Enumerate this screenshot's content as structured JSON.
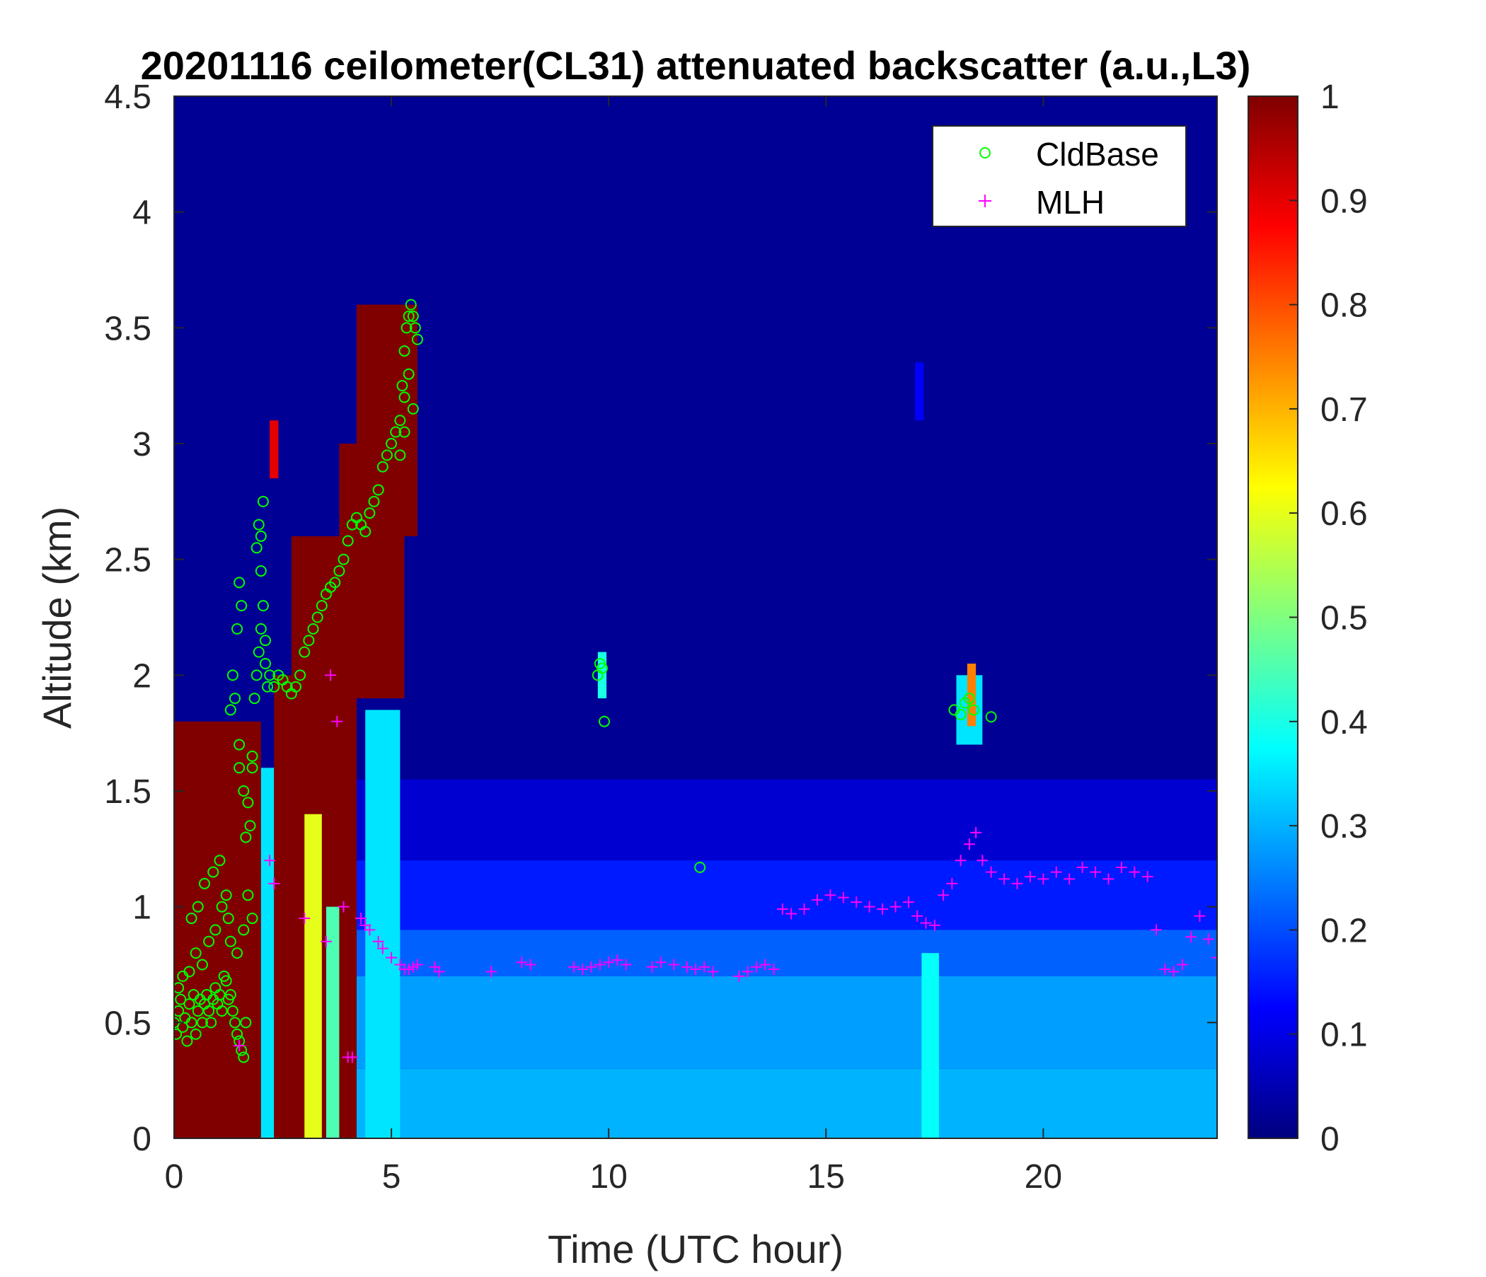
{
  "chart_data": {
    "type": "heatmap",
    "title": "20201116 ceilometer(CL31) attenuated backscatter (a.u.,L3)",
    "xlabel": "Time (UTC hour)",
    "ylabel": "Altitude (km)",
    "xlim": [
      0,
      24
    ],
    "ylim": [
      0,
      4.5
    ],
    "xticks": [
      0,
      5,
      10,
      15,
      20
    ],
    "xtick_labels": [
      "0",
      "5",
      "10",
      "15",
      "20"
    ],
    "yticks": [
      0,
      0.5,
      1,
      1.5,
      2,
      2.5,
      3,
      3.5,
      4,
      4.5
    ],
    "ytick_labels": [
      "0",
      "0.5",
      "1",
      "1.5",
      "2",
      "2.5",
      "3",
      "3.5",
      "4",
      "4.5"
    ],
    "colorbar": {
      "colormap": "jet",
      "range": [
        0,
        1
      ],
      "ticks": [
        0,
        0.1,
        0.2,
        0.3,
        0.4,
        0.5,
        0.6,
        0.7,
        0.8,
        0.9,
        1
      ],
      "tick_labels": [
        "0",
        "0.1",
        "0.2",
        "0.3",
        "0.4",
        "0.5",
        "0.6",
        "0.7",
        "0.8",
        "0.9",
        "1"
      ]
    },
    "legend": {
      "position": "top-right"
    },
    "heatmap_regions": [
      {
        "t0": 0.0,
        "t1": 24.0,
        "z0": 0.0,
        "z1": 4.5,
        "value": 0.02
      },
      {
        "t0": 4.2,
        "t1": 24.0,
        "z0": 1.2,
        "z1": 1.55,
        "value": 0.08
      },
      {
        "t0": 4.2,
        "t1": 24.0,
        "z0": 0.9,
        "z1": 1.2,
        "value": 0.15
      },
      {
        "t0": 4.2,
        "t1": 24.0,
        "z0": 0.7,
        "z1": 0.9,
        "value": 0.22
      },
      {
        "t0": 4.2,
        "t1": 24.0,
        "z0": 0.3,
        "z1": 0.7,
        "value": 0.28
      },
      {
        "t0": 4.2,
        "t1": 24.0,
        "z0": 0.0,
        "z1": 0.3,
        "value": 0.3
      },
      {
        "t0": 4.4,
        "t1": 5.2,
        "z0": 0.0,
        "z1": 1.85,
        "value": 0.35
      },
      {
        "t0": 17.2,
        "t1": 17.6,
        "z0": 0.0,
        "z1": 0.8,
        "value": 0.38
      },
      {
        "t0": 0.0,
        "t1": 2.0,
        "z0": 0.0,
        "z1": 1.8,
        "value": 1.0
      },
      {
        "t0": 2.0,
        "t1": 2.3,
        "z0": 0.0,
        "z1": 1.6,
        "value": 0.35
      },
      {
        "t0": 2.3,
        "t1": 2.7,
        "z0": 0.0,
        "z1": 2.0,
        "value": 1.0
      },
      {
        "t0": 2.7,
        "t1": 4.2,
        "z0": 0.0,
        "z1": 2.6,
        "value": 1.0
      },
      {
        "t0": 3.0,
        "t1": 3.4,
        "z0": 0.0,
        "z1": 1.4,
        "value": 0.6
      },
      {
        "t0": 3.5,
        "t1": 3.8,
        "z0": 0.0,
        "z1": 1.0,
        "value": 0.45
      },
      {
        "t0": 3.8,
        "t1": 5.3,
        "z0": 1.9,
        "z1": 3.0,
        "value": 1.0
      },
      {
        "t0": 4.2,
        "t1": 5.6,
        "z0": 2.6,
        "z1": 3.6,
        "value": 1.0
      },
      {
        "t0": 2.2,
        "t1": 2.4,
        "z0": 2.85,
        "z1": 3.1,
        "value": 0.9
      },
      {
        "t0": 9.75,
        "t1": 9.95,
        "z0": 1.9,
        "z1": 2.1,
        "value": 0.4
      },
      {
        "t0": 18.0,
        "t1": 18.6,
        "z0": 1.7,
        "z1": 2.0,
        "value": 0.35
      },
      {
        "t0": 18.25,
        "t1": 18.45,
        "z0": 1.78,
        "z1": 2.05,
        "value": 0.75
      },
      {
        "t0": 17.05,
        "t1": 17.25,
        "z0": 3.1,
        "z1": 3.35,
        "value": 0.12
      }
    ],
    "series": [
      {
        "name": "CldBase",
        "marker": "circle",
        "color": "#00ff00",
        "x": [
          0.0,
          0.05,
          0.1,
          0.15,
          0.2,
          0.25,
          0.3,
          0.35,
          0.4,
          0.45,
          0.5,
          0.55,
          0.6,
          0.65,
          0.7,
          0.75,
          0.8,
          0.85,
          0.9,
          0.95,
          1.0,
          1.05,
          1.1,
          1.15,
          1.2,
          1.25,
          1.3,
          1.35,
          1.4,
          1.45,
          1.5,
          1.55,
          1.6,
          1.65,
          0.1,
          0.2,
          0.35,
          0.5,
          0.65,
          0.8,
          0.95,
          1.1,
          1.25,
          0.4,
          0.55,
          0.7,
          0.9,
          1.05,
          1.2,
          1.3,
          1.45,
          1.6,
          1.7,
          1.8,
          1.5,
          1.5,
          1.6,
          1.7,
          1.8,
          1.8,
          1.85,
          1.9,
          1.95,
          2.0,
          2.05,
          2.1,
          2.1,
          2.15,
          1.9,
          1.95,
          2.0,
          2.05,
          2.0,
          1.55,
          1.45,
          1.35,
          1.4,
          1.3,
          1.5,
          1.65,
          1.75,
          2.2,
          2.3,
          2.4,
          2.5,
          2.6,
          2.7,
          2.8,
          2.9,
          3.0,
          3.1,
          3.2,
          3.3,
          3.4,
          3.5,
          3.6,
          3.7,
          3.8,
          3.9,
          4.0,
          4.1,
          4.2,
          4.3,
          4.4,
          4.5,
          4.6,
          4.7,
          4.8,
          4.9,
          5.0,
          5.1,
          5.2,
          5.25,
          5.3,
          5.35,
          5.4,
          5.45,
          5.5,
          5.55,
          5.6,
          5.3,
          5.4,
          5.5,
          5.2,
          5.3,
          9.75,
          9.8,
          9.85,
          9.9,
          12.1,
          17.95,
          18.1,
          18.2,
          18.3,
          18.4,
          18.8
        ],
        "y": [
          0.5,
          0.45,
          0.55,
          0.6,
          0.48,
          0.52,
          0.42,
          0.58,
          0.5,
          0.62,
          0.45,
          0.55,
          0.6,
          0.5,
          0.58,
          0.62,
          0.55,
          0.5,
          0.6,
          0.65,
          0.58,
          0.62,
          0.55,
          0.7,
          0.68,
          0.6,
          0.62,
          0.55,
          0.5,
          0.45,
          0.42,
          0.38,
          0.35,
          0.5,
          0.65,
          0.7,
          0.72,
          0.8,
          0.75,
          0.85,
          0.9,
          1.0,
          0.95,
          0.95,
          1.0,
          1.1,
          1.15,
          1.2,
          1.05,
          0.85,
          0.8,
          0.9,
          1.05,
          0.95,
          1.6,
          1.7,
          1.5,
          1.45,
          1.6,
          1.65,
          1.9,
          2.0,
          2.1,
          2.2,
          2.3,
          2.15,
          2.05,
          1.95,
          2.55,
          2.65,
          2.6,
          2.75,
          2.45,
          2.3,
          2.2,
          2.0,
          1.9,
          1.85,
          2.4,
          1.3,
          1.35,
          2.0,
          1.95,
          2.0,
          1.98,
          1.95,
          1.92,
          1.95,
          2.0,
          2.1,
          2.15,
          2.2,
          2.25,
          2.3,
          2.35,
          2.38,
          2.4,
          2.45,
          2.5,
          2.58,
          2.65,
          2.68,
          2.65,
          2.62,
          2.7,
          2.75,
          2.8,
          2.9,
          2.95,
          3.0,
          3.05,
          3.1,
          3.25,
          3.4,
          3.5,
          3.55,
          3.6,
          3.55,
          3.5,
          3.45,
          3.2,
          3.3,
          3.15,
          2.95,
          3.05,
          2.0,
          2.05,
          2.03,
          1.8,
          1.17,
          1.85,
          1.83,
          1.88,
          1.9,
          1.85,
          1.82
        ]
      },
      {
        "name": "MLH",
        "marker": "plus",
        "color": "#ff00ff",
        "x": [
          1.5,
          2.2,
          2.3,
          3.0,
          3.5,
          3.6,
          3.75,
          3.9,
          4.0,
          4.1,
          4.3,
          4.4,
          4.5,
          4.7,
          4.8,
          5.0,
          5.2,
          5.3,
          5.4,
          5.5,
          5.6,
          6.0,
          6.1,
          7.3,
          8.0,
          8.2,
          9.2,
          9.4,
          9.6,
          9.8,
          10.0,
          10.2,
          10.4,
          11.0,
          11.2,
          11.5,
          11.8,
          12.0,
          12.2,
          12.4,
          13.0,
          13.2,
          13.4,
          13.6,
          13.8,
          14.0,
          14.2,
          14.5,
          14.8,
          15.1,
          15.4,
          15.7,
          16.0,
          16.3,
          16.6,
          16.9,
          17.1,
          17.3,
          17.5,
          17.7,
          17.9,
          18.1,
          18.3,
          18.45,
          18.6,
          18.8,
          19.1,
          19.4,
          19.7,
          20.0,
          20.3,
          20.6,
          20.9,
          21.2,
          21.5,
          21.8,
          22.1,
          22.4,
          22.6,
          22.8,
          23.0,
          23.2,
          23.4,
          23.6,
          23.8,
          24.0
        ],
        "y": [
          0.4,
          1.2,
          1.1,
          0.95,
          0.85,
          2.0,
          1.8,
          1.0,
          0.35,
          0.35,
          0.95,
          0.92,
          0.9,
          0.85,
          0.82,
          0.78,
          0.75,
          0.73,
          0.73,
          0.74,
          0.75,
          0.74,
          0.72,
          0.72,
          0.76,
          0.75,
          0.74,
          0.73,
          0.74,
          0.75,
          0.76,
          0.77,
          0.75,
          0.74,
          0.76,
          0.75,
          0.74,
          0.73,
          0.74,
          0.72,
          0.7,
          0.72,
          0.74,
          0.75,
          0.73,
          0.99,
          0.97,
          0.99,
          1.03,
          1.05,
          1.04,
          1.02,
          1.0,
          0.99,
          1.0,
          1.02,
          0.96,
          0.93,
          0.92,
          1.05,
          1.1,
          1.2,
          1.27,
          1.32,
          1.2,
          1.15,
          1.12,
          1.1,
          1.13,
          1.12,
          1.15,
          1.12,
          1.17,
          1.15,
          1.12,
          1.17,
          1.15,
          1.13,
          0.9,
          0.73,
          0.72,
          0.75,
          0.87,
          0.96,
          0.86,
          0.78
        ]
      }
    ]
  }
}
